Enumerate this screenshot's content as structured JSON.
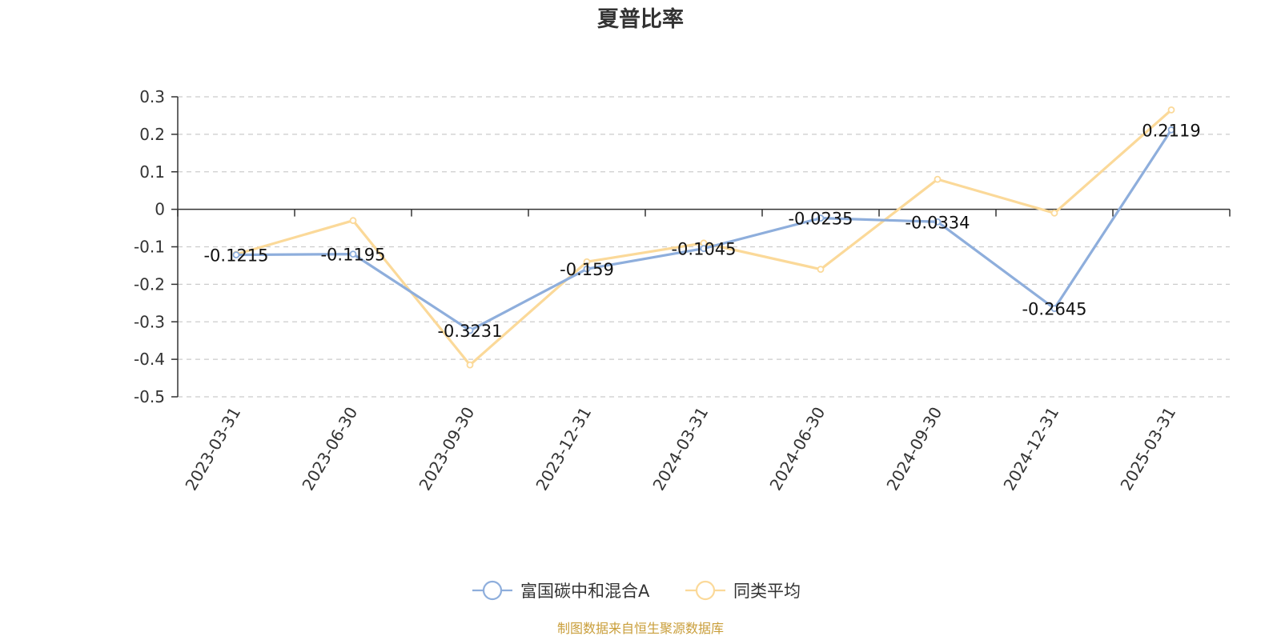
{
  "chart_data": {
    "type": "line",
    "title": "夏普比率",
    "categories": [
      "2023-03-31",
      "2023-06-30",
      "2023-09-30",
      "2023-12-31",
      "2024-03-31",
      "2024-06-30",
      "2024-09-30",
      "2024-12-31",
      "2025-03-31"
    ],
    "ylim": [
      -0.5,
      0.3
    ],
    "yticks": [
      0.3,
      0.2,
      0.1,
      0,
      -0.1,
      -0.2,
      -0.3,
      -0.4,
      -0.5
    ],
    "ytick_labels": [
      "0.3",
      "0.2",
      "0.1",
      "0",
      "-0.1",
      "-0.2",
      "-0.3",
      "-0.4",
      "-0.5"
    ],
    "grid": "horizontal-dashed",
    "legend_position": "bottom-center",
    "series": [
      {
        "name": "富国碳中和混合A",
        "color": "#8eaedc",
        "values": [
          -0.1215,
          -0.1195,
          -0.3231,
          -0.159,
          -0.1045,
          -0.0235,
          -0.0334,
          -0.2645,
          0.2119
        ],
        "data_labels": [
          "-0.1215",
          "-0.1195",
          "-0.3231",
          "-0.159",
          "-0.1045",
          "-0.0235",
          "-0.0334",
          "-0.2645",
          "0.2119"
        ]
      },
      {
        "name": "同类平均",
        "color": "#fbd999",
        "values": [
          -0.12,
          -0.03,
          -0.415,
          -0.14,
          -0.09,
          -0.16,
          0.08,
          -0.01,
          0.265
        ]
      }
    ]
  },
  "source_note": "制图数据来自恒生聚源数据库",
  "source_color": "#c99e3a"
}
